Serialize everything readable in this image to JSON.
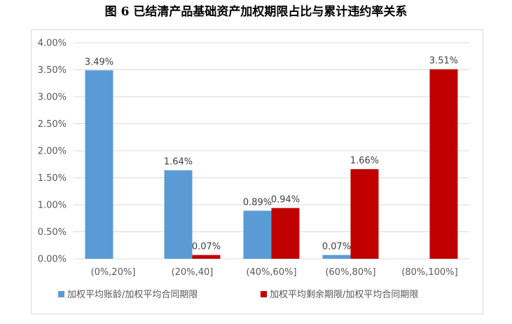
{
  "chart_data": {
    "type": "bar",
    "title": "图 6 已结清产品基础资产加权期限占比与累计违约率关系",
    "categories": [
      "(0%,20%]",
      "(20%,40]",
      "(40%,60%]",
      "(60%,80%]",
      "(80%,100%]"
    ],
    "series": [
      {
        "name": "加权平均账龄/加权平均合同期限",
        "color": "#5b9bd5",
        "values": [
          3.49,
          1.64,
          0.89,
          0.07,
          null
        ],
        "labels": [
          "3.49%",
          "1.64%",
          "0.89%",
          "0.07%",
          ""
        ]
      },
      {
        "name": "加权平均剩余期限/加权平均合同期限",
        "color": "#c00000",
        "values": [
          null,
          0.07,
          0.94,
          1.66,
          3.51
        ],
        "labels": [
          "",
          "0.07%",
          "0.94%",
          "1.66%",
          "3.51%"
        ]
      }
    ],
    "ylim": [
      0,
      4
    ],
    "yticks": [
      "0.00%",
      "0.50%",
      "1.00%",
      "1.50%",
      "2.00%",
      "2.50%",
      "3.00%",
      "3.50%",
      "4.00%"
    ],
    "ytick_values": [
      0,
      0.5,
      1.0,
      1.5,
      2.0,
      2.5,
      3.0,
      3.5,
      4.0
    ],
    "grid": true,
    "legend_position": "bottom"
  }
}
